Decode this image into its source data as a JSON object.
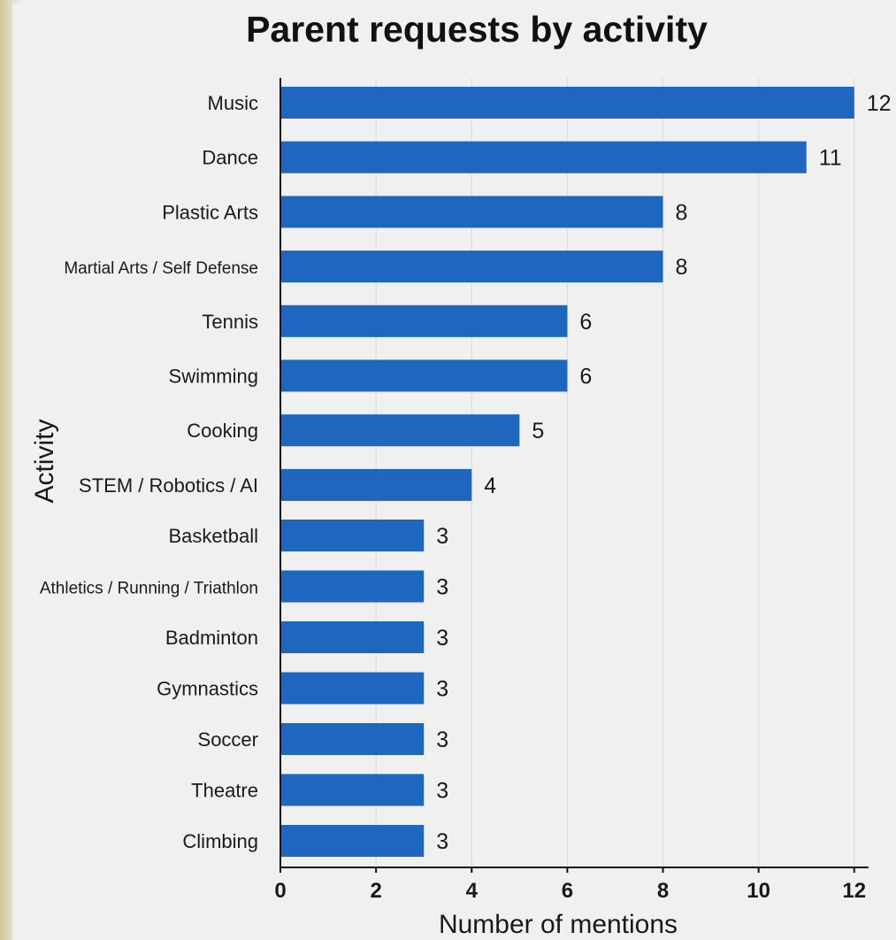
{
  "chart_data": {
    "type": "bar",
    "orientation": "horizontal",
    "title": "Parent requests by activity",
    "xlabel": "Number of mentions",
    "ylabel": "Activity",
    "categories": [
      "Music",
      "Dance",
      "Plastic Arts",
      "Martial Arts / Self Defense",
      "Tennis",
      "Swimming",
      "Cooking",
      "STEM / Robotics / AI",
      "Basketball",
      "Athletics / Running / Triathlon",
      "Badminton",
      "Gymnastics",
      "Soccer",
      "Theatre",
      "Climbing"
    ],
    "values": [
      12,
      11,
      8,
      8,
      6,
      6,
      5,
      4,
      3,
      3,
      3,
      3,
      3,
      3,
      3
    ],
    "xlim": [
      0,
      12.3
    ],
    "xticks": [
      "0",
      "2",
      "4",
      "6",
      "8",
      "10",
      "12"
    ],
    "grid": "vertical",
    "bar_color": "#1f66be",
    "legend": "none"
  }
}
